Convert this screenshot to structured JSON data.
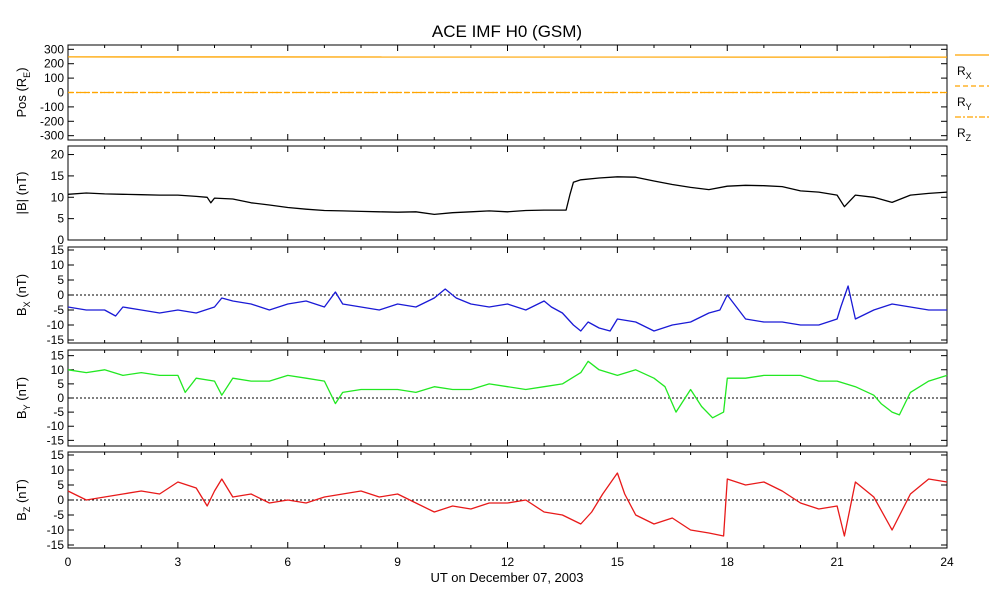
{
  "title": "ACE IMF H0 (GSM)",
  "x_axis_label": "UT on December 07, 2003",
  "colors": {
    "pos": "#ffa500",
    "b": "#000000",
    "bx": "#1a1ad6",
    "by": "#22e822",
    "bz": "#e81a1a",
    "zero_line": "#000000"
  },
  "legend": [
    {
      "base": "R",
      "sub": "X"
    },
    {
      "base": "R",
      "sub": "Y"
    },
    {
      "base": "R",
      "sub": "Z"
    }
  ],
  "chart_data": [
    {
      "type": "line",
      "panel_id": "pos",
      "ylabel": {
        "base": "Pos (R",
        "sub": "E",
        "tail": ")"
      },
      "ylim": [
        -330,
        330
      ],
      "y_ticks": [
        300,
        200,
        100,
        0,
        -100,
        -200,
        -300
      ],
      "x_ticks": [
        0,
        3,
        6,
        9,
        12,
        15,
        18,
        21,
        24
      ],
      "xlim": [
        0,
        24
      ],
      "zero_line": true,
      "series": [
        {
          "name": "RX",
          "x": [
            0,
            24
          ],
          "y": [
            247,
            246
          ]
        },
        {
          "name": "RY",
          "x": [
            0,
            24
          ],
          "y": [
            0,
            0
          ]
        },
        {
          "name": "RZ",
          "x": [
            0,
            24
          ],
          "y": [
            0,
            0
          ]
        }
      ]
    },
    {
      "type": "line",
      "panel_id": "b",
      "ylabel": {
        "base": "|B| (nT)",
        "sub": "",
        "tail": ""
      },
      "ylim": [
        0,
        22
      ],
      "y_ticks": [
        20,
        15,
        10,
        5,
        0
      ],
      "x_ticks": [
        0,
        3,
        6,
        9,
        12,
        15,
        18,
        21,
        24
      ],
      "xlim": [
        0,
        24
      ],
      "zero_line": false,
      "series": [
        {
          "x": [
            0,
            0.5,
            1,
            1.5,
            2,
            2.5,
            3,
            3.5,
            3.8,
            3.9,
            4,
            4.5,
            5,
            5.5,
            6,
            6.5,
            7,
            7.5,
            8,
            8.5,
            9,
            9.5,
            10,
            10.5,
            11,
            11.5,
            12,
            12.5,
            13,
            13.6,
            13.7,
            13.8,
            14,
            14.5,
            15,
            15.5,
            16,
            16.5,
            17,
            17.5,
            18,
            18.5,
            19,
            19.5,
            20,
            20.5,
            21,
            21.2,
            21.5,
            22,
            22.5,
            23,
            23.5,
            24
          ],
          "y": [
            10.7,
            11,
            10.8,
            10.7,
            10.6,
            10.5,
            10.5,
            10.2,
            10.0,
            8.7,
            9.8,
            9.6,
            8.7,
            8.2,
            7.6,
            7.2,
            6.9,
            6.8,
            6.7,
            6.6,
            6.5,
            6.6,
            6.0,
            6.4,
            6.6,
            6.8,
            6.6,
            6.9,
            7.0,
            7.0,
            10.5,
            13.5,
            14.1,
            14.5,
            14.8,
            14.7,
            13.8,
            13.0,
            12.3,
            11.8,
            12.6,
            12.8,
            12.7,
            12.5,
            11.5,
            11.2,
            10.5,
            7.8,
            10.5,
            10.0,
            8.8,
            10.5,
            10.9,
            11.2
          ]
        }
      ]
    },
    {
      "type": "line",
      "panel_id": "bx",
      "ylabel": {
        "base": "B",
        "sub": "X",
        "tail": " (nT)"
      },
      "ylim": [
        -16,
        16
      ],
      "y_ticks": [
        15,
        10,
        5,
        0,
        -5,
        -10,
        -15
      ],
      "x_ticks": [
        0,
        3,
        6,
        9,
        12,
        15,
        18,
        21,
        24
      ],
      "xlim": [
        0,
        24
      ],
      "zero_line": true,
      "series": [
        {
          "x": [
            0,
            0.5,
            1,
            1.3,
            1.5,
            2,
            2.5,
            3,
            3.5,
            4,
            4.2,
            4.5,
            5,
            5.5,
            6,
            6.5,
            7,
            7.3,
            7.5,
            8,
            8.5,
            9,
            9.5,
            10,
            10.3,
            10.6,
            11,
            11.5,
            12,
            12.5,
            13,
            13.2,
            13.5,
            13.8,
            14,
            14.2,
            14.5,
            14.8,
            15,
            15.5,
            16,
            16.5,
            17,
            17.5,
            17.8,
            18,
            18.5,
            19,
            19.5,
            20,
            20.5,
            21,
            21.1,
            21.3,
            21.5,
            22,
            22.5,
            23,
            23.5,
            24
          ],
          "y": [
            -4,
            -5,
            -5,
            -7,
            -4,
            -5,
            -6,
            -5,
            -6,
            -4,
            -1,
            -2,
            -3,
            -5,
            -3,
            -2,
            -4,
            1,
            -3,
            -4,
            -5,
            -3,
            -4,
            -1,
            2,
            -1,
            -3,
            -4,
            -3,
            -5,
            -2,
            -4,
            -6,
            -10,
            -12,
            -9,
            -11,
            -12,
            -8,
            -9,
            -12,
            -10,
            -9,
            -6,
            -5,
            0,
            -8,
            -9,
            -9,
            -10,
            -10,
            -8,
            -4,
            3,
            -8,
            -5,
            -3,
            -4,
            -5,
            -5
          ]
        }
      ]
    },
    {
      "type": "line",
      "panel_id": "by",
      "ylabel": {
        "base": "B",
        "sub": "Y",
        "tail": " (nT)"
      },
      "ylim": [
        -17,
        17
      ],
      "y_ticks": [
        15,
        10,
        5,
        0,
        -5,
        -10,
        -15
      ],
      "x_ticks": [
        0,
        3,
        6,
        9,
        12,
        15,
        18,
        21,
        24
      ],
      "xlim": [
        0,
        24
      ],
      "zero_line": true,
      "series": [
        {
          "x": [
            0,
            0.5,
            1,
            1.5,
            2,
            2.5,
            3,
            3.2,
            3.5,
            4,
            4.2,
            4.5,
            5,
            5.5,
            6,
            6.5,
            7,
            7.3,
            7.5,
            8,
            8.5,
            9,
            9.5,
            10,
            10.5,
            11,
            11.5,
            12,
            12.5,
            13,
            13.5,
            14,
            14.2,
            14.5,
            15,
            15.5,
            16,
            16.3,
            16.6,
            17,
            17.3,
            17.6,
            17.9,
            18,
            18.5,
            19,
            19.5,
            20,
            20.5,
            21,
            21.5,
            22,
            22.2,
            22.5,
            22.7,
            23,
            23.5,
            24
          ],
          "y": [
            10,
            9,
            10,
            8,
            9,
            8,
            8,
            2,
            7,
            6,
            1,
            7,
            6,
            6,
            8,
            7,
            6,
            -2,
            2,
            3,
            3,
            3,
            2,
            4,
            3,
            3,
            5,
            4,
            3,
            4,
            5,
            9,
            13,
            10,
            8,
            10,
            7,
            4,
            -5,
            3,
            -3,
            -7,
            -5,
            7,
            7,
            8,
            8,
            8,
            6,
            6,
            4,
            1,
            -2,
            -5,
            -6,
            2,
            6,
            8
          ]
        }
      ]
    },
    {
      "type": "line",
      "panel_id": "bz",
      "ylabel": {
        "base": "B",
        "sub": "Z",
        "tail": " (nT)"
      },
      "ylim": [
        -16,
        16
      ],
      "y_ticks": [
        15,
        10,
        5,
        0,
        -5,
        -10,
        -15
      ],
      "x_ticks": [
        0,
        3,
        6,
        9,
        12,
        15,
        18,
        21,
        24
      ],
      "xlim": [
        0,
        24
      ],
      "zero_line": true,
      "series": [
        {
          "x": [
            0,
            0.5,
            1,
            1.5,
            2,
            2.5,
            3,
            3.5,
            3.8,
            4,
            4.2,
            4.5,
            5,
            5.5,
            6,
            6.5,
            7,
            7.5,
            8,
            8.5,
            9,
            9.5,
            10,
            10.5,
            11,
            11.5,
            12,
            12.5,
            13,
            13.5,
            14,
            14.3,
            14.6,
            15,
            15.2,
            15.5,
            16,
            16.5,
            17,
            17.5,
            17.9,
            18,
            18.5,
            19,
            19.5,
            20,
            20.5,
            21,
            21.2,
            21.5,
            22,
            22.5,
            23,
            23.5,
            24
          ],
          "y": [
            3,
            0,
            1,
            2,
            3,
            2,
            6,
            4,
            -2,
            3,
            7,
            1,
            2,
            -1,
            0,
            -1,
            1,
            2,
            3,
            1,
            2,
            -1,
            -4,
            -2,
            -3,
            -1,
            -1,
            0,
            -4,
            -5,
            -8,
            -4,
            2,
            9,
            2,
            -5,
            -8,
            -6,
            -10,
            -11,
            -12,
            7,
            5,
            6,
            3,
            -1,
            -3,
            -2,
            -12,
            6,
            1,
            -10,
            2,
            7,
            6
          ]
        }
      ]
    }
  ]
}
